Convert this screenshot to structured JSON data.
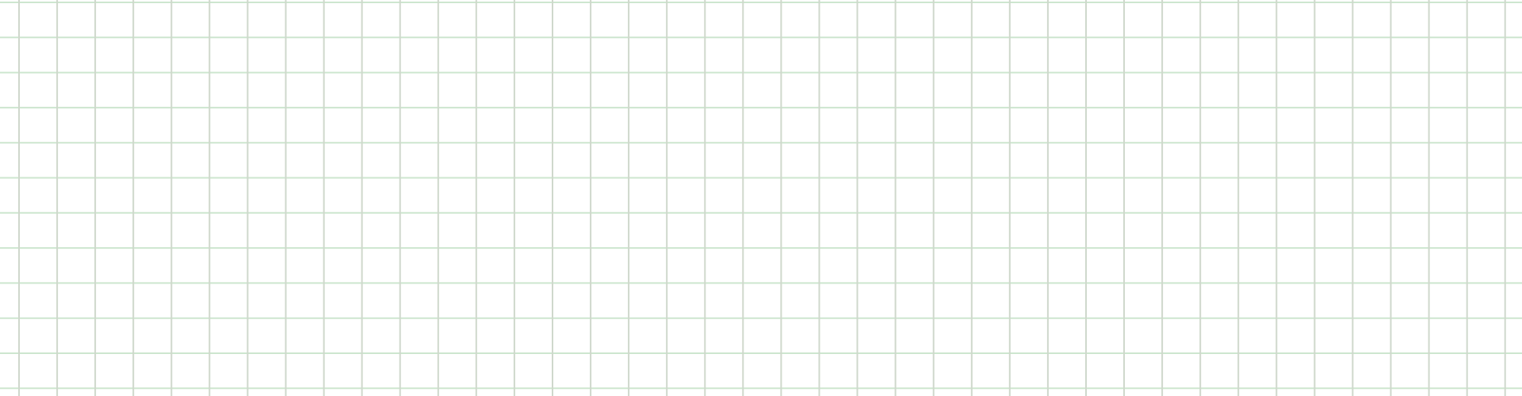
{
  "background_color": "#ffffff",
  "vertical_line_color": "#cfd8cc",
  "horizontal_line_color": "#cde6cf"
}
